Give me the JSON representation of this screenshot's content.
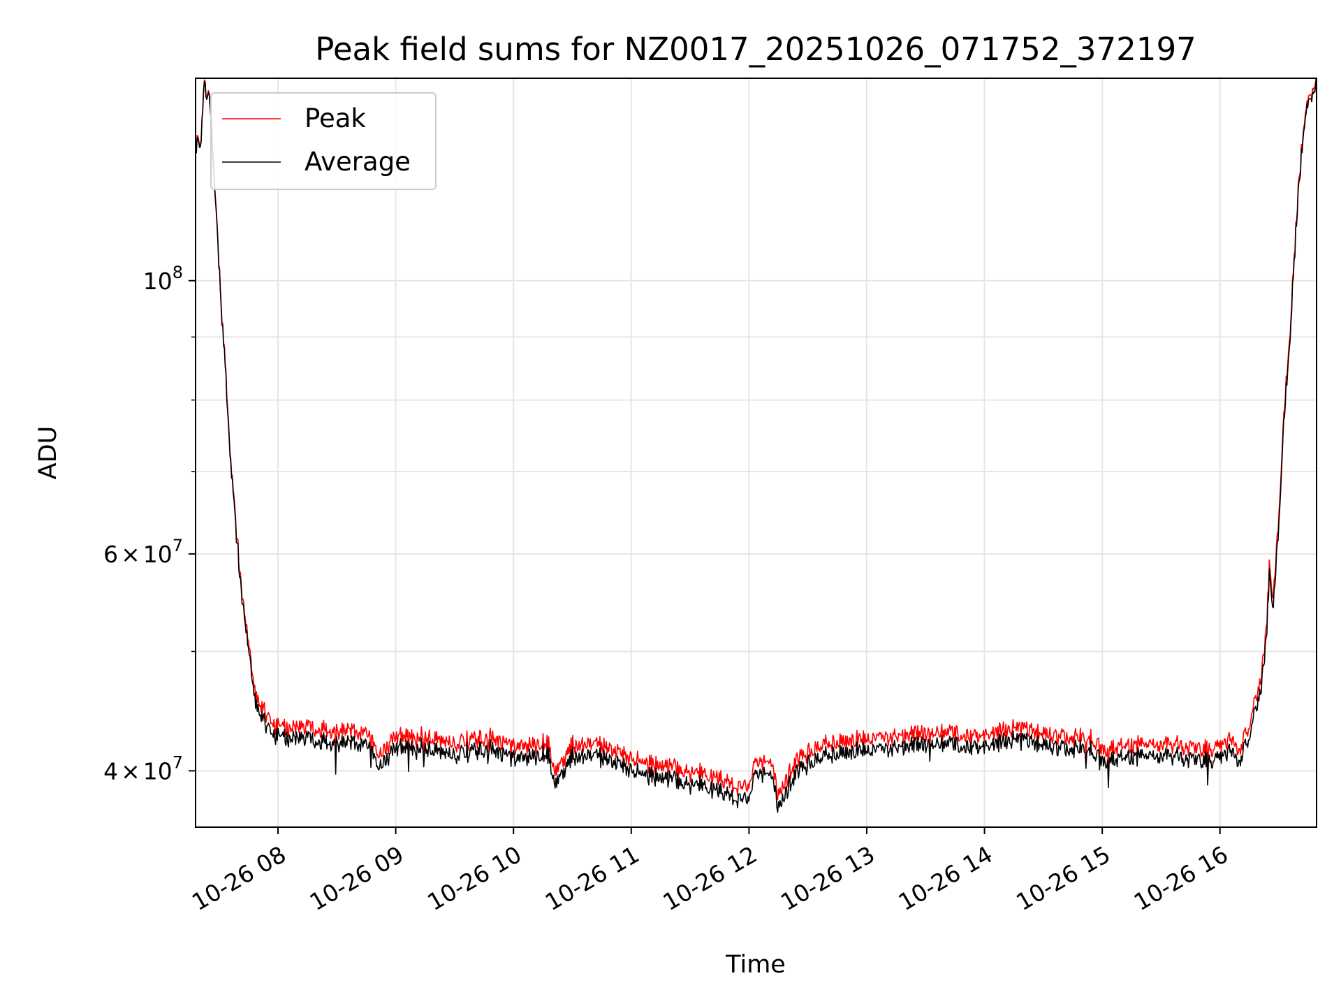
{
  "chart_data": {
    "type": "line",
    "title": "Peak field sums for NZ0017_20251026_071752_372197",
    "xlabel": "Time",
    "ylabel": "ADU",
    "yscale": "log",
    "ylim": [
      36000000,
      146000000
    ],
    "xlim_hours": [
      7.3,
      16.82
    ],
    "grid": true,
    "legend_position": "upper-left",
    "x_ticks": [
      {
        "hour": 8,
        "label": "10-26 08"
      },
      {
        "hour": 9,
        "label": "10-26 09"
      },
      {
        "hour": 10,
        "label": "10-26 10"
      },
      {
        "hour": 11,
        "label": "10-26 11"
      },
      {
        "hour": 12,
        "label": "10-26 12"
      },
      {
        "hour": 13,
        "label": "10-26 13"
      },
      {
        "hour": 14,
        "label": "10-26 14"
      },
      {
        "hour": 15,
        "label": "10-26 15"
      },
      {
        "hour": 16,
        "label": "10-26 16"
      }
    ],
    "y_major_ticks": [
      {
        "value": 40000000,
        "mantissa": "4",
        "exponent": "7"
      },
      {
        "value": 60000000,
        "mantissa": "6",
        "exponent": "7"
      },
      {
        "value": 100000000,
        "mantissa": "",
        "exponent": "8"
      }
    ],
    "y_minor_ticks": [
      50000000,
      70000000,
      80000000,
      90000000
    ],
    "x_hours": [
      7.3,
      7.35,
      7.37,
      7.42,
      7.5,
      7.55,
      7.6,
      7.7,
      7.8,
      7.9,
      8.0,
      8.2,
      8.5,
      8.8,
      8.85,
      9.0,
      9.2,
      9.5,
      9.8,
      10.0,
      10.3,
      10.35,
      10.5,
      10.8,
      11.0,
      11.3,
      11.6,
      11.8,
      12.0,
      12.05,
      12.2,
      12.25,
      12.4,
      12.6,
      13.0,
      13.5,
      14.0,
      14.3,
      14.6,
      14.9,
      15.0,
      15.3,
      15.6,
      15.9,
      16.1,
      16.15,
      16.25,
      16.35,
      16.4,
      16.42,
      16.45,
      16.5,
      16.55,
      16.6,
      16.65,
      16.7,
      16.75,
      16.82
    ],
    "series": [
      {
        "name": "Peak",
        "color": "#ff0000",
        "values": [
          130000000,
          130500000,
          143000000,
          142000000,
          103000000,
          86000000,
          71000000,
          55000000,
          46500000,
          44500000,
          43300000,
          43500000,
          43000000,
          42800000,
          41200000,
          42600000,
          42800000,
          42100000,
          42500000,
          41700000,
          42200000,
          39800000,
          42000000,
          41900000,
          41000000,
          40300000,
          39800000,
          39200000,
          38600000,
          41000000,
          40200000,
          38200000,
          40800000,
          41900000,
          42500000,
          42900000,
          42800000,
          43300000,
          42700000,
          42500000,
          41600000,
          42000000,
          41900000,
          41800000,
          42400000,
          41500000,
          43800000,
          47500000,
          53000000,
          60000000,
          55000000,
          65000000,
          80000000,
          93000000,
          113000000,
          130000000,
          142000000,
          144000000
        ]
      },
      {
        "name": "Average",
        "color": "#000000",
        "values": [
          129500000,
          130000000,
          142500000,
          141500000,
          102500000,
          85500000,
          70500000,
          54500000,
          45800000,
          43600000,
          42500000,
          42600000,
          42000000,
          41900000,
          40300000,
          41700000,
          41900000,
          41200000,
          41600000,
          40800000,
          41300000,
          38900000,
          41100000,
          41000000,
          40100000,
          39400000,
          38900000,
          38300000,
          37700000,
          40100000,
          39300000,
          37300000,
          39900000,
          41000000,
          41600000,
          42000000,
          41900000,
          42400000,
          41800000,
          41600000,
          40700000,
          41100000,
          41000000,
          40900000,
          41500000,
          40600000,
          42900000,
          46600000,
          52000000,
          59000000,
          54000000,
          64000000,
          79000000,
          92000000,
          112000000,
          129000000,
          141000000,
          143000000
        ]
      }
    ]
  }
}
